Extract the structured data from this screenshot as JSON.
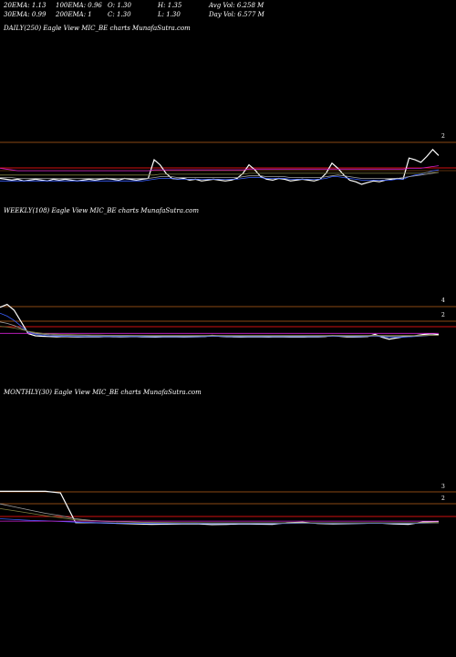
{
  "header": {
    "row1": [
      "20EMA: 1.13",
      "100EMA: 0.96",
      "O: 1.30",
      "H: 1.35",
      "Avg Vol: 6.258  M"
    ],
    "row2": [
      "30EMA: 0.99",
      "200EMA: 1",
      "C: 1.30",
      "L: 1.30",
      "Day Vol: 6.577  M"
    ]
  },
  "colors": {
    "background": "#000000",
    "price": "#ffffff",
    "blue": "#3a5fff",
    "magenta": "#d020d0",
    "red": "#d01010",
    "orange_line": "#b8601a",
    "gray": "#a0a0a0",
    "olive": "#808040"
  },
  "chart_data": [
    {
      "type": "line",
      "title": "DAILY(250) Eagle   View  MIC_BE charts MunafaSutra.com",
      "upper_tick": "2",
      "lower_tick": "",
      "series": [
        {
          "color": "#ffffff",
          "values": [
            1.06,
            1.05,
            1.04,
            1.05,
            1.03,
            1.04,
            1.05,
            1.04,
            1.03,
            1.05,
            1.04,
            1.05,
            1.04,
            1.03,
            1.04,
            1.05,
            1.04,
            1.05,
            1.06,
            1.05,
            1.04,
            1.06,
            1.05,
            1.04,
            1.05,
            1.06,
            1.28,
            1.22,
            1.12,
            1.06,
            1.05,
            1.06,
            1.04,
            1.05,
            1.03,
            1.04,
            1.05,
            1.04,
            1.03,
            1.04,
            1.06,
            1.12,
            1.22,
            1.16,
            1.08,
            1.05,
            1.04,
            1.06,
            1.05,
            1.03,
            1.04,
            1.05,
            1.04,
            1.03,
            1.05,
            1.12,
            1.24,
            1.18,
            1.1,
            1.04,
            1.02,
            0.99,
            1.01,
            1.03,
            1.02,
            1.04,
            1.05,
            1.06,
            1.05,
            1.3,
            1.28,
            1.25,
            1.32,
            1.4,
            1.33
          ]
        },
        {
          "color": "#d020d0",
          "values": [
            1.18,
            1.17,
            1.16,
            1.15,
            1.15,
            1.15,
            1.15,
            1.15,
            1.15,
            1.15,
            1.15,
            1.15,
            1.15,
            1.15,
            1.15,
            1.15,
            1.15,
            1.15,
            1.15,
            1.15,
            1.15,
            1.15,
            1.15,
            1.15,
            1.15,
            1.15,
            1.16,
            1.16,
            1.16,
            1.16,
            1.16,
            1.16,
            1.16,
            1.16,
            1.16,
            1.16,
            1.16,
            1.16,
            1.16,
            1.16,
            1.16,
            1.16,
            1.17,
            1.17,
            1.17,
            1.17,
            1.17,
            1.17,
            1.17,
            1.17,
            1.17,
            1.17,
            1.17,
            1.17,
            1.17,
            1.17,
            1.17,
            1.17,
            1.17,
            1.17,
            1.17,
            1.17,
            1.17,
            1.17,
            1.17,
            1.17,
            1.17,
            1.17,
            1.17,
            1.18,
            1.18,
            1.18,
            1.19,
            1.2,
            1.21
          ]
        },
        {
          "color": "#3a5fff",
          "values": [
            1.03,
            1.03,
            1.03,
            1.03,
            1.03,
            1.03,
            1.03,
            1.03,
            1.03,
            1.03,
            1.03,
            1.03,
            1.03,
            1.03,
            1.03,
            1.03,
            1.03,
            1.03,
            1.03,
            1.03,
            1.03,
            1.03,
            1.03,
            1.03,
            1.03,
            1.04,
            1.05,
            1.06,
            1.06,
            1.06,
            1.05,
            1.05,
            1.05,
            1.05,
            1.05,
            1.05,
            1.05,
            1.05,
            1.05,
            1.05,
            1.05,
            1.06,
            1.07,
            1.07,
            1.07,
            1.06,
            1.06,
            1.06,
            1.06,
            1.05,
            1.05,
            1.05,
            1.05,
            1.05,
            1.05,
            1.06,
            1.08,
            1.08,
            1.07,
            1.06,
            1.05,
            1.04,
            1.04,
            1.04,
            1.04,
            1.04,
            1.04,
            1.05,
            1.05,
            1.08,
            1.1,
            1.11,
            1.13,
            1.15,
            1.16
          ]
        },
        {
          "color": "#a0a0a0",
          "values": [
            1.07,
            1.07,
            1.07,
            1.06,
            1.06,
            1.06,
            1.06,
            1.06,
            1.06,
            1.06,
            1.06,
            1.06,
            1.06,
            1.06,
            1.06,
            1.06,
            1.06,
            1.06,
            1.06,
            1.06,
            1.06,
            1.06,
            1.06,
            1.06,
            1.06,
            1.06,
            1.07,
            1.08,
            1.08,
            1.08,
            1.07,
            1.07,
            1.07,
            1.07,
            1.07,
            1.07,
            1.07,
            1.07,
            1.07,
            1.07,
            1.07,
            1.08,
            1.09,
            1.09,
            1.09,
            1.08,
            1.08,
            1.08,
            1.08,
            1.07,
            1.07,
            1.07,
            1.07,
            1.07,
            1.07,
            1.08,
            1.09,
            1.1,
            1.09,
            1.08,
            1.07,
            1.06,
            1.06,
            1.06,
            1.06,
            1.06,
            1.06,
            1.06,
            1.07,
            1.08,
            1.09,
            1.1,
            1.11,
            1.12,
            1.13
          ]
        },
        {
          "color": "#808040",
          "values": [
            1.1,
            1.1,
            1.1,
            1.1,
            1.1,
            1.1,
            1.1,
            1.1,
            1.1,
            1.1,
            1.1,
            1.1,
            1.1,
            1.1,
            1.1,
            1.1,
            1.1,
            1.1,
            1.1,
            1.1,
            1.1,
            1.1,
            1.1,
            1.1,
            1.1,
            1.1,
            1.1,
            1.11,
            1.11,
            1.11,
            1.11,
            1.11,
            1.11,
            1.11,
            1.11,
            1.11,
            1.11,
            1.11,
            1.11,
            1.11,
            1.11,
            1.11,
            1.12,
            1.12,
            1.12,
            1.12,
            1.12,
            1.12,
            1.12,
            1.12,
            1.12,
            1.12,
            1.12,
            1.12,
            1.12,
            1.12,
            1.12,
            1.12,
            1.12,
            1.12,
            1.12,
            1.12,
            1.12,
            1.12,
            1.12,
            1.12,
            1.12,
            1.12,
            1.12,
            1.12,
            1.12,
            1.12,
            1.13,
            1.13,
            1.13
          ]
        }
      ]
    },
    {
      "type": "line",
      "title": "WEEKLY(108) Eagle   View  MIC_BE charts MunafaSutra.com",
      "upper_tick": "4",
      "lower_tick": "2",
      "series": [
        {
          "color": "#ffffff",
          "values": [
            3.2,
            3.4,
            3.0,
            2.2,
            1.4,
            1.25,
            1.22,
            1.2,
            1.18,
            1.2,
            1.19,
            1.17,
            1.18,
            1.19,
            1.18,
            1.2,
            1.19,
            1.18,
            1.19,
            1.2,
            1.18,
            1.17,
            1.16,
            1.18,
            1.19,
            1.18,
            1.17,
            1.18,
            1.19,
            1.2,
            1.28,
            1.22,
            1.19,
            1.18,
            1.17,
            1.18,
            1.19,
            1.18,
            1.17,
            1.19,
            1.18,
            1.17,
            1.18,
            1.17,
            1.19,
            1.18,
            1.2,
            1.26,
            1.22,
            1.18,
            1.17,
            1.18,
            1.2,
            1.35,
            1.15,
            1.02,
            1.1,
            1.18,
            1.2,
            1.28,
            1.35,
            1.38,
            1.33
          ]
        },
        {
          "color": "#d020d0",
          "values": [
            1.42,
            1.42,
            1.42,
            1.42,
            1.42,
            1.42,
            1.42,
            1.42,
            1.42,
            1.42,
            1.42,
            1.42,
            1.42,
            1.42,
            1.42,
            1.42,
            1.42,
            1.42,
            1.42,
            1.42,
            1.42,
            1.42,
            1.42,
            1.42,
            1.42,
            1.42,
            1.42,
            1.42,
            1.42,
            1.42,
            1.42,
            1.42,
            1.42,
            1.42,
            1.42,
            1.42,
            1.42,
            1.42,
            1.42,
            1.42,
            1.42,
            1.42,
            1.42,
            1.42,
            1.42,
            1.42,
            1.42,
            1.42,
            1.42,
            1.42,
            1.42,
            1.42,
            1.42,
            1.42,
            1.42,
            1.42,
            1.42,
            1.42,
            1.42,
            1.42,
            1.42,
            1.42,
            1.42
          ]
        },
        {
          "color": "#3a5fff",
          "values": [
            2.8,
            2.6,
            2.3,
            1.9,
            1.5,
            1.35,
            1.28,
            1.25,
            1.23,
            1.22,
            1.21,
            1.2,
            1.2,
            1.2,
            1.2,
            1.2,
            1.2,
            1.2,
            1.2,
            1.2,
            1.2,
            1.19,
            1.19,
            1.19,
            1.19,
            1.19,
            1.19,
            1.19,
            1.19,
            1.2,
            1.21,
            1.21,
            1.2,
            1.2,
            1.2,
            1.2,
            1.2,
            1.2,
            1.2,
            1.2,
            1.2,
            1.2,
            1.2,
            1.2,
            1.2,
            1.2,
            1.21,
            1.22,
            1.22,
            1.21,
            1.2,
            1.2,
            1.21,
            1.24,
            1.2,
            1.15,
            1.15,
            1.17,
            1.18,
            1.21,
            1.25,
            1.28,
            1.29
          ]
        },
        {
          "color": "#a0a0a0",
          "values": [
            2.2,
            2.1,
            1.95,
            1.75,
            1.55,
            1.42,
            1.36,
            1.32,
            1.3,
            1.28,
            1.27,
            1.26,
            1.26,
            1.25,
            1.25,
            1.25,
            1.25,
            1.25,
            1.25,
            1.25,
            1.25,
            1.24,
            1.24,
            1.24,
            1.24,
            1.24,
            1.24,
            1.24,
            1.24,
            1.24,
            1.25,
            1.25,
            1.24,
            1.24,
            1.24,
            1.24,
            1.24,
            1.24,
            1.24,
            1.24,
            1.24,
            1.24,
            1.24,
            1.24,
            1.24,
            1.24,
            1.24,
            1.25,
            1.25,
            1.24,
            1.24,
            1.24,
            1.24,
            1.26,
            1.24,
            1.22,
            1.22,
            1.23,
            1.23,
            1.24,
            1.26,
            1.28,
            1.29
          ]
        },
        {
          "color": "#808040",
          "values": [
            1.9,
            1.85,
            1.78,
            1.68,
            1.56,
            1.48,
            1.42,
            1.38,
            1.36,
            1.34,
            1.33,
            1.32,
            1.31,
            1.3,
            1.3,
            1.29,
            1.29,
            1.29,
            1.29,
            1.28,
            1.28,
            1.28,
            1.28,
            1.28,
            1.28,
            1.28,
            1.28,
            1.28,
            1.28,
            1.28,
            1.28,
            1.28,
            1.28,
            1.28,
            1.28,
            1.28,
            1.28,
            1.28,
            1.28,
            1.28,
            1.28,
            1.28,
            1.28,
            1.28,
            1.28,
            1.28,
            1.28,
            1.28,
            1.28,
            1.28,
            1.28,
            1.28,
            1.28,
            1.28,
            1.28,
            1.27,
            1.27,
            1.27,
            1.27,
            1.27,
            1.28,
            1.28,
            1.28
          ]
        }
      ]
    },
    {
      "type": "line",
      "title": "MONTHLY(30) Eagle   View  MIC_BE charts MunafaSutra.com",
      "upper_tick": "3",
      "lower_tick": "2",
      "series": [
        {
          "color": "#ffffff",
          "values": [
            3.3,
            3.3,
            3.3,
            3.3,
            3.2,
            1.3,
            1.3,
            1.28,
            1.25,
            1.22,
            1.2,
            1.21,
            1.22,
            1.23,
            1.18,
            1.2,
            1.22,
            1.21,
            1.2,
            1.3,
            1.33,
            1.25,
            1.22,
            1.24,
            1.26,
            1.28,
            1.22,
            1.2,
            1.35,
            1.38
          ]
        },
        {
          "color": "#3a5fff",
          "values": [
            1.55,
            1.5,
            1.45,
            1.42,
            1.38,
            1.34,
            1.3,
            1.28,
            1.27,
            1.26,
            1.25,
            1.25,
            1.25,
            1.25,
            1.24,
            1.24,
            1.24,
            1.24,
            1.24,
            1.25,
            1.26,
            1.26,
            1.25,
            1.25,
            1.25,
            1.26,
            1.25,
            1.25,
            1.27,
            1.29
          ]
        },
        {
          "color": "#a0a0a0",
          "values": [
            2.5,
            2.3,
            2.1,
            1.9,
            1.75,
            1.55,
            1.45,
            1.4,
            1.36,
            1.33,
            1.31,
            1.3,
            1.29,
            1.29,
            1.28,
            1.28,
            1.28,
            1.28,
            1.28,
            1.28,
            1.29,
            1.29,
            1.28,
            1.28,
            1.28,
            1.29,
            1.28,
            1.28,
            1.29,
            1.3
          ]
        },
        {
          "color": "#808040",
          "values": [
            2.2,
            2.05,
            1.9,
            1.75,
            1.62,
            1.48,
            1.42,
            1.38,
            1.35,
            1.33,
            1.32,
            1.31,
            1.3,
            1.3,
            1.29,
            1.29,
            1.29,
            1.29,
            1.29,
            1.29,
            1.29,
            1.29,
            1.29,
            1.29,
            1.29,
            1.29,
            1.29,
            1.29,
            1.3,
            1.3
          ]
        },
        {
          "color": "#d020d0",
          "values": [
            1.4,
            1.4,
            1.4,
            1.4,
            1.4,
            1.4,
            1.4,
            1.4,
            1.4,
            1.4,
            1.4,
            1.4,
            1.4,
            1.4,
            1.4,
            1.4,
            1.4,
            1.4,
            1.4,
            1.4,
            1.4,
            1.4,
            1.4,
            1.4,
            1.4,
            1.4,
            1.4,
            1.4,
            1.4,
            1.4
          ]
        }
      ]
    }
  ]
}
